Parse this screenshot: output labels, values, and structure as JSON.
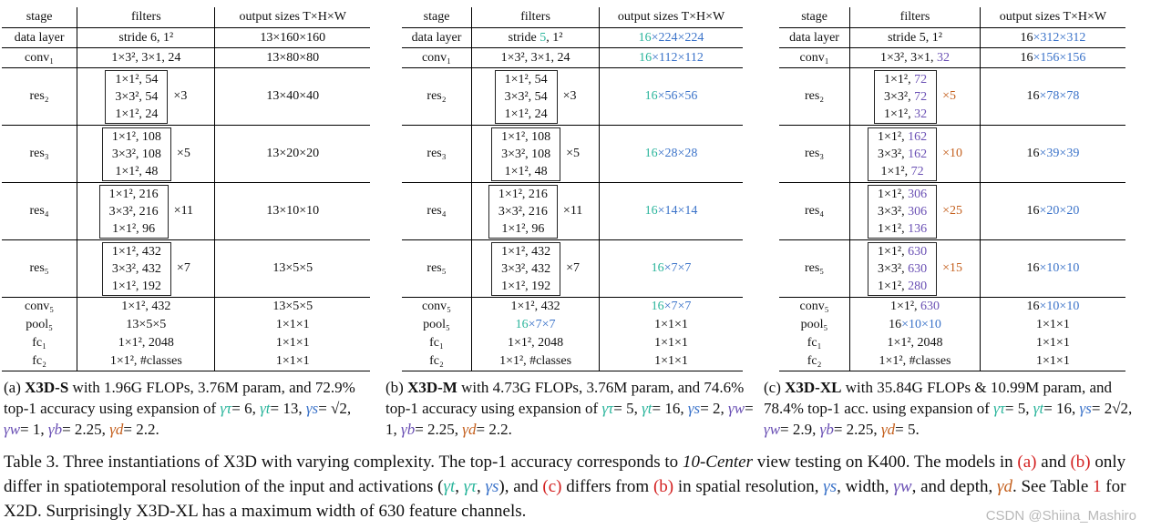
{
  "headers": {
    "stage": "stage",
    "filters": "filters",
    "output": "output sizes T×H×W"
  },
  "panels": {
    "a": {
      "rows": {
        "data_layer": {
          "stage": "data layer",
          "filters": "stride 6, 1²",
          "output": "13×160×160"
        },
        "conv1": {
          "stage": "conv₁",
          "filters": "1×3², 3×1, 24",
          "output": "13×80×80"
        },
        "res2": {
          "stage": "res₂",
          "l1": "1×1², 54",
          "l2": "3×3², 54",
          "l3": "1×1², 24",
          "mult": "×3",
          "output": "13×40×40"
        },
        "res3": {
          "stage": "res₃",
          "l1": "1×1², 108",
          "l2": "3×3², 108",
          "l3": "1×1², 48",
          "mult": "×5",
          "output": "13×20×20"
        },
        "res4": {
          "stage": "res₄",
          "l1": "1×1², 216",
          "l2": "3×3², 216",
          "l3": "1×1², 96",
          "mult": "×11",
          "output": "13×10×10"
        },
        "res5": {
          "stage": "res₅",
          "l1": "1×1², 432",
          "l2": "3×3², 432",
          "l3": "1×1², 192",
          "mult": "×7",
          "output": "13×5×5"
        },
        "conv5": {
          "stage": "conv₅",
          "filters": "1×1², 432",
          "output": "13×5×5"
        },
        "pool5": {
          "stage": "pool₅",
          "filters": "13×5×5",
          "output": "1×1×1"
        },
        "fc1": {
          "stage": "fc₁",
          "filters": "1×1², 2048",
          "output": "1×1×1"
        },
        "fc2": {
          "stage": "fc₂",
          "filters": "1×1²,  #classes",
          "output": "1×1×1"
        }
      },
      "caption": {
        "label": "(a)",
        "model": "X3D-S",
        "line1": " with 1.96G FLOPs, 3.76M param, and 72.9% top-1 accuracy using expansion of ",
        "g_tau": "γτ",
        "v_tau": "= 6,",
        "g_t": "γt",
        "v_t": "= 13,",
        "g_s": "γs",
        "v_s": "= √2,",
        "g_w": "γw",
        "v_w": "= 1,",
        "g_b": "γb",
        "v_b": "= 2.25,",
        "g_d": "γd",
        "v_d": "= 2.2."
      }
    },
    "b": {
      "rows": {
        "data_layer": {
          "stage": "data layer",
          "f_pre": "stride ",
          "f_hl": "5",
          "f_post": ", 1²",
          "o_hl": "16",
          "o_post": "×224×224"
        },
        "conv1": {
          "stage": "conv₁",
          "filters": "1×3², 3×1, 24",
          "o_hl": "16",
          "o_post": "×112×112"
        },
        "res2": {
          "stage": "res₂",
          "l1": "1×1², 54",
          "l2": "3×3², 54",
          "l3": "1×1², 24",
          "mult": "×3",
          "o_hl": "16",
          "o_post": "×56×56"
        },
        "res3": {
          "stage": "res₃",
          "l1": "1×1², 108",
          "l2": "3×3², 108",
          "l3": "1×1², 48",
          "mult": "×5",
          "o_hl": "16",
          "o_post": "×28×28"
        },
        "res4": {
          "stage": "res₄",
          "l1": "1×1², 216",
          "l2": "3×3², 216",
          "l3": "1×1², 96",
          "mult": "×11",
          "o_hl": "16",
          "o_post": "×14×14"
        },
        "res5": {
          "stage": "res₅",
          "l1": "1×1², 432",
          "l2": "3×3², 432",
          "l3": "1×1², 192",
          "mult": "×7",
          "o_hl": "16",
          "o_post": "×7×7"
        },
        "conv5": {
          "stage": "conv₅",
          "filters": "1×1², 432",
          "o_hl": "16",
          "o_post": "×7×7"
        },
        "pool5": {
          "stage": "pool₅",
          "f_hl": "16",
          "f_post": "×7×7",
          "output": "1×1×1"
        },
        "fc1": {
          "stage": "fc₁",
          "filters": "1×1², 2048",
          "output": "1×1×1"
        },
        "fc2": {
          "stage": "fc₂",
          "filters": "1×1²,  #classes",
          "output": "1×1×1"
        }
      },
      "caption": {
        "label": "(b)",
        "model": "X3D-M",
        "line1": " with 4.73G FLOPs, 3.76M param, and 74.6% top-1 accuracy using expansion of ",
        "g_tau": "γτ",
        "v_tau": "= 5,",
        "g_t": "γt",
        "v_t": "= 16,",
        "g_s": "γs",
        "v_s": "= 2,",
        "g_w": "γw",
        "v_w": "= 1,",
        "g_b": "γb",
        "v_b": "= 2.25,",
        "g_d": "γd",
        "v_d": "= 2.2."
      }
    },
    "c": {
      "rows": {
        "data_layer": {
          "stage": "data layer",
          "filters": "stride 5, 1²",
          "o_t": "16",
          "o_hl": "×312×312"
        },
        "conv1": {
          "stage": "conv₁",
          "f_pre": "1×3², 3×1, ",
          "f_hl": "32",
          "o_t": "16",
          "o_hl": "×156×156"
        },
        "res2": {
          "stage": "res₂",
          "p1": "1×1², ",
          "h1": "72",
          "p2": "3×3², ",
          "h2": "72",
          "p3": "1×1², ",
          "h3": "32",
          "mult": "×5",
          "o_t": "16",
          "o_hl": "×78×78"
        },
        "res3": {
          "stage": "res₃",
          "p1": "1×1², ",
          "h1": "162",
          "p2": "3×3², ",
          "h2": "162",
          "p3": "1×1², ",
          "h3": "72",
          "mult": "×10",
          "o_t": "16",
          "o_hl": "×39×39"
        },
        "res4": {
          "stage": "res₄",
          "p1": "1×1², ",
          "h1": "306",
          "p2": "3×3², ",
          "h2": "306",
          "p3": "1×1², ",
          "h3": "136",
          "mult": "×25",
          "o_t": "16",
          "o_hl": "×20×20"
        },
        "res5": {
          "stage": "res₅",
          "p1": "1×1², ",
          "h1": "630",
          "p2": "3×3², ",
          "h2": "630",
          "p3": "1×1², ",
          "h3": "280",
          "mult": "×15",
          "o_t": "16",
          "o_hl": "×10×10"
        },
        "conv5": {
          "stage": "conv₅",
          "f_pre": "1×1², ",
          "f_hl": "630",
          "o_t": "16",
          "o_hl": "×10×10"
        },
        "pool5": {
          "stage": "pool₅",
          "f_pre": "16",
          "f_hl": "×10×10",
          "output": "1×1×1"
        },
        "fc1": {
          "stage": "fc₁",
          "filters": "1×1², 2048",
          "output": "1×1×1"
        },
        "fc2": {
          "stage": "fc₂",
          "filters": "1×1²,  #classes",
          "output": "1×1×1"
        }
      },
      "caption": {
        "label": "(c)",
        "model": "X3D-XL",
        "line1": " with 35.84G FLOPs & 10.99M param, and 78.4% top-1 acc. using expansion of ",
        "g_tau": "γτ",
        "v_tau": "= 5,",
        "g_t": "γt",
        "v_t": "= 16,",
        "g_s": "γs",
        "v_s": "= 2√2,",
        "g_w": "γw",
        "v_w": "= 2.9,",
        "g_b": "γb",
        "v_b": "= 2.25,",
        "g_d": "γd",
        "v_d": "= 5."
      }
    }
  },
  "table_caption": {
    "t1": "Table 3. Three instantiations of X3D with varying complexity. The top-1 accuracy corresponds to ",
    "t1_em": "10-Center",
    "t2": " view testing on K400. The models in ",
    "ref_a": "(a)",
    "t3": " and ",
    "ref_b": "(b)",
    "t4": " only differ in spatiotemporal resolution of the input and activations (",
    "g_t": "γt",
    "c1": ", ",
    "g_tau": "γτ",
    "c2": ", ",
    "g_s": "γs",
    "t5": "), and ",
    "ref_c": "(c)",
    "t6": " differs from ",
    "ref_b2": "(b)",
    "t7": " in spatial resolution, ",
    "g_s2": "γs",
    "t8": ", width, ",
    "g_w": "γw",
    "t9": ", and depth, ",
    "g_d": "γd",
    "t10": ". See Table ",
    "ref_1": "1",
    "t11": " for X2D. Surprisingly X3D-XL has a maximum width of 630 feature channels."
  },
  "watermark": "CSDN @Shiina_Mashiro",
  "colors": {
    "teal": "#2bb59c",
    "blue": "#3b73c9",
    "purple": "#6a50b4",
    "orange": "#c4601e",
    "red": "#d31f1f"
  }
}
